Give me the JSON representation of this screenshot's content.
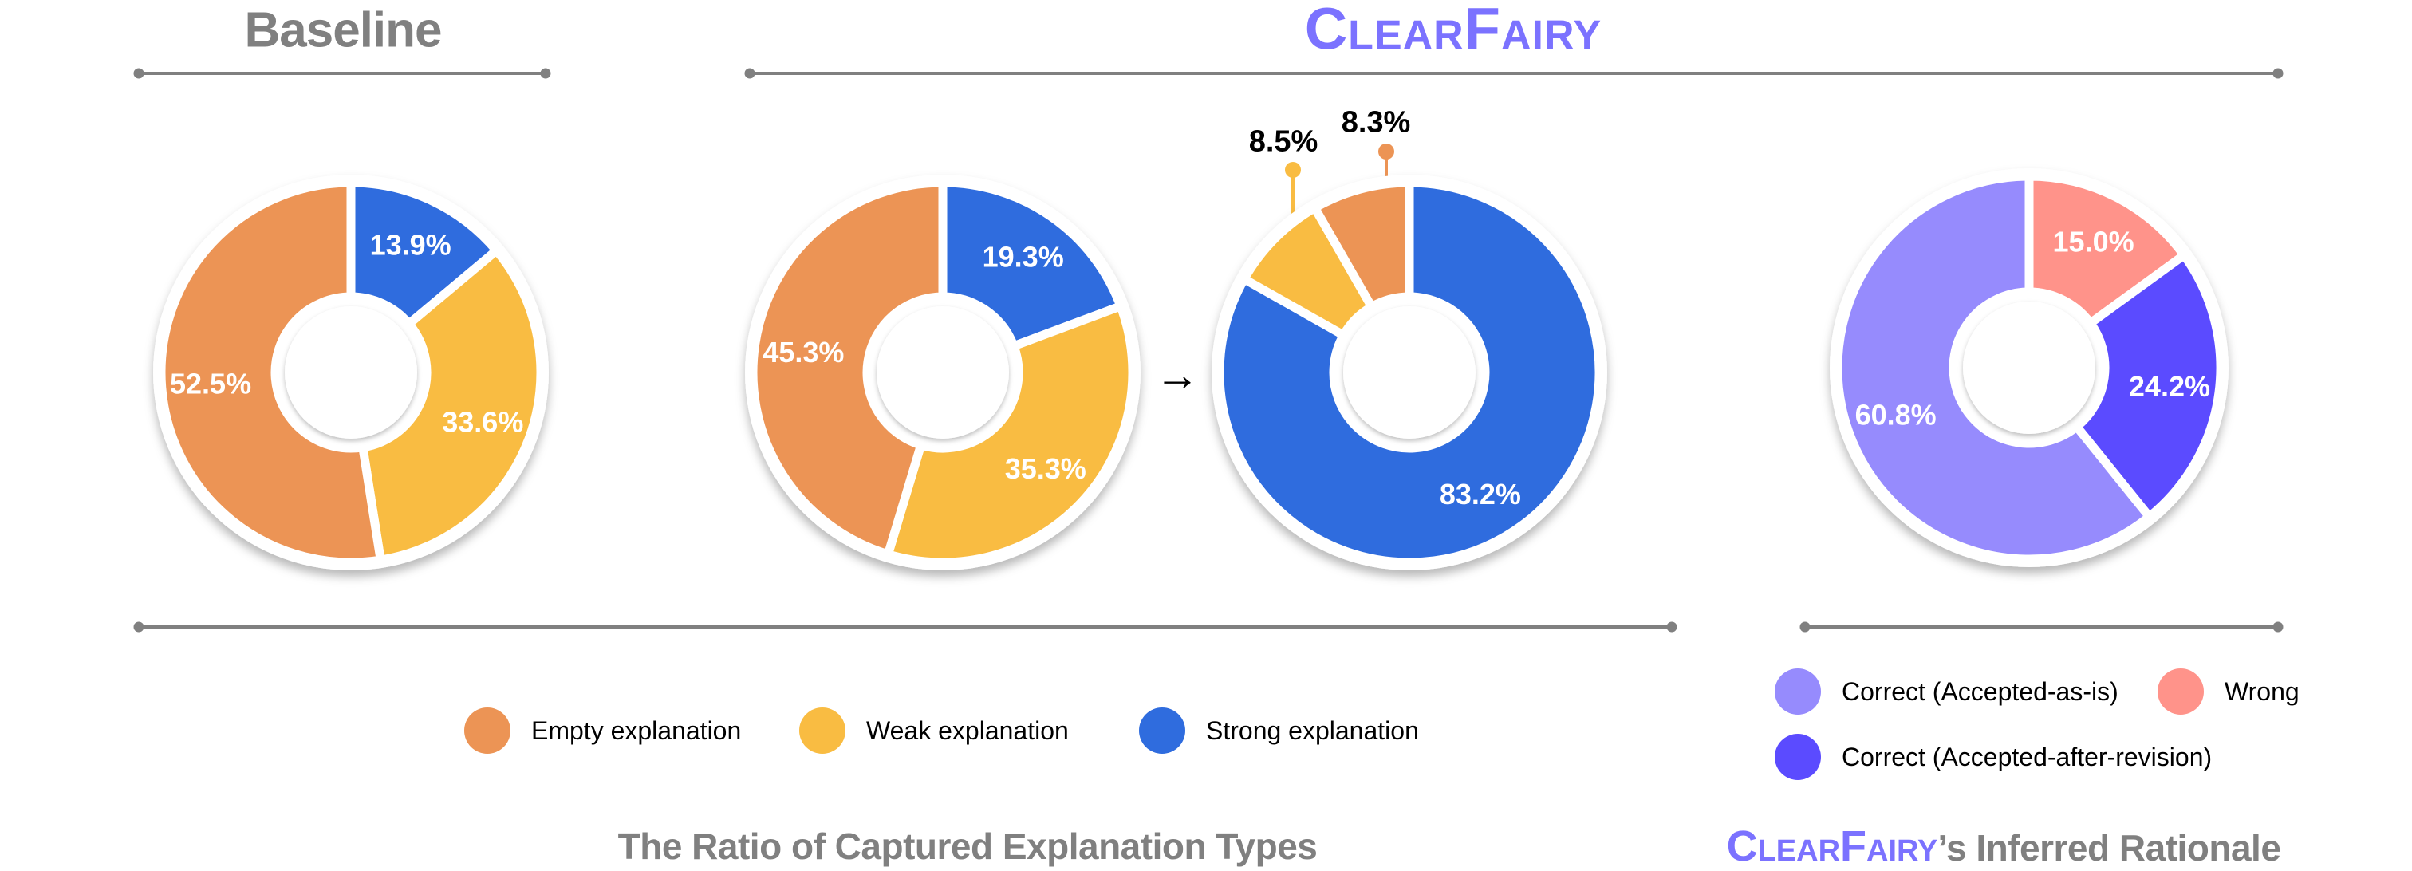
{
  "headers": {
    "baseline": "Baseline",
    "clearfairy": "ClearFairy"
  },
  "arrow": "→",
  "colors": {
    "empty": "#EC9455",
    "weak": "#F9BC42",
    "strong": "#2F6CDE",
    "wrong": "#FF938A",
    "correct_as_is": "#968BFD",
    "correct_after_revision": "#5B4BFF",
    "brand": "#7B72FF",
    "gray": "#808080"
  },
  "legend_explanation": [
    {
      "label": "Empty explanation",
      "color": "#EC9455"
    },
    {
      "label": "Weak explanation",
      "color": "#F9BC42"
    },
    {
      "label": "Strong explanation",
      "color": "#2F6CDE"
    }
  ],
  "legend_rationale": [
    {
      "label": "Correct (Accepted-as-is)",
      "color": "#968BFD"
    },
    {
      "label": "Wrong",
      "color": "#FF938A"
    },
    {
      "label": "Correct (Accepted-after-revision)",
      "color": "#5B4BFF"
    }
  ],
  "bottom_titles": {
    "left": "The Ratio of Captured Explanation Types",
    "right_brand": "ClearFairy",
    "right_rest": "’s Inferred Rationale"
  },
  "chart_data": [
    {
      "type": "pie",
      "title": "Baseline",
      "categories": [
        "Strong explanation",
        "Weak explanation",
        "Empty explanation"
      ],
      "values": [
        13.9,
        33.6,
        52.5
      ],
      "labels": [
        "13.9%",
        "33.6%",
        "52.5%"
      ],
      "colors": [
        "#2F6CDE",
        "#F9BC42",
        "#EC9455"
      ],
      "donut": true
    },
    {
      "type": "pie",
      "title": "ClearFairy (before)",
      "categories": [
        "Strong explanation",
        "Weak explanation",
        "Empty explanation"
      ],
      "values": [
        19.3,
        35.3,
        45.3
      ],
      "labels": [
        "19.3%",
        "35.3%",
        "45.3%"
      ],
      "colors": [
        "#2F6CDE",
        "#F9BC42",
        "#EC9455"
      ],
      "donut": true
    },
    {
      "type": "pie",
      "title": "ClearFairy (after)",
      "categories": [
        "Strong explanation",
        "Weak explanation",
        "Empty explanation"
      ],
      "values": [
        83.2,
        8.5,
        8.3
      ],
      "labels": [
        "83.2%",
        "8.5%",
        "8.3%"
      ],
      "colors": [
        "#2F6CDE",
        "#F9BC42",
        "#EC9455"
      ],
      "donut": true,
      "callouts": [
        "8.5%",
        "8.3%"
      ]
    },
    {
      "type": "pie",
      "title": "ClearFairy's Inferred Rationale",
      "categories": [
        "Wrong",
        "Correct (Accepted-after-revision)",
        "Correct (Accepted-as-is)"
      ],
      "values": [
        15.0,
        24.2,
        60.8
      ],
      "labels": [
        "15.0%",
        "24.2%",
        "60.8%"
      ],
      "colors": [
        "#FF938A",
        "#5B4BFF",
        "#968BFD"
      ],
      "donut": true
    }
  ]
}
